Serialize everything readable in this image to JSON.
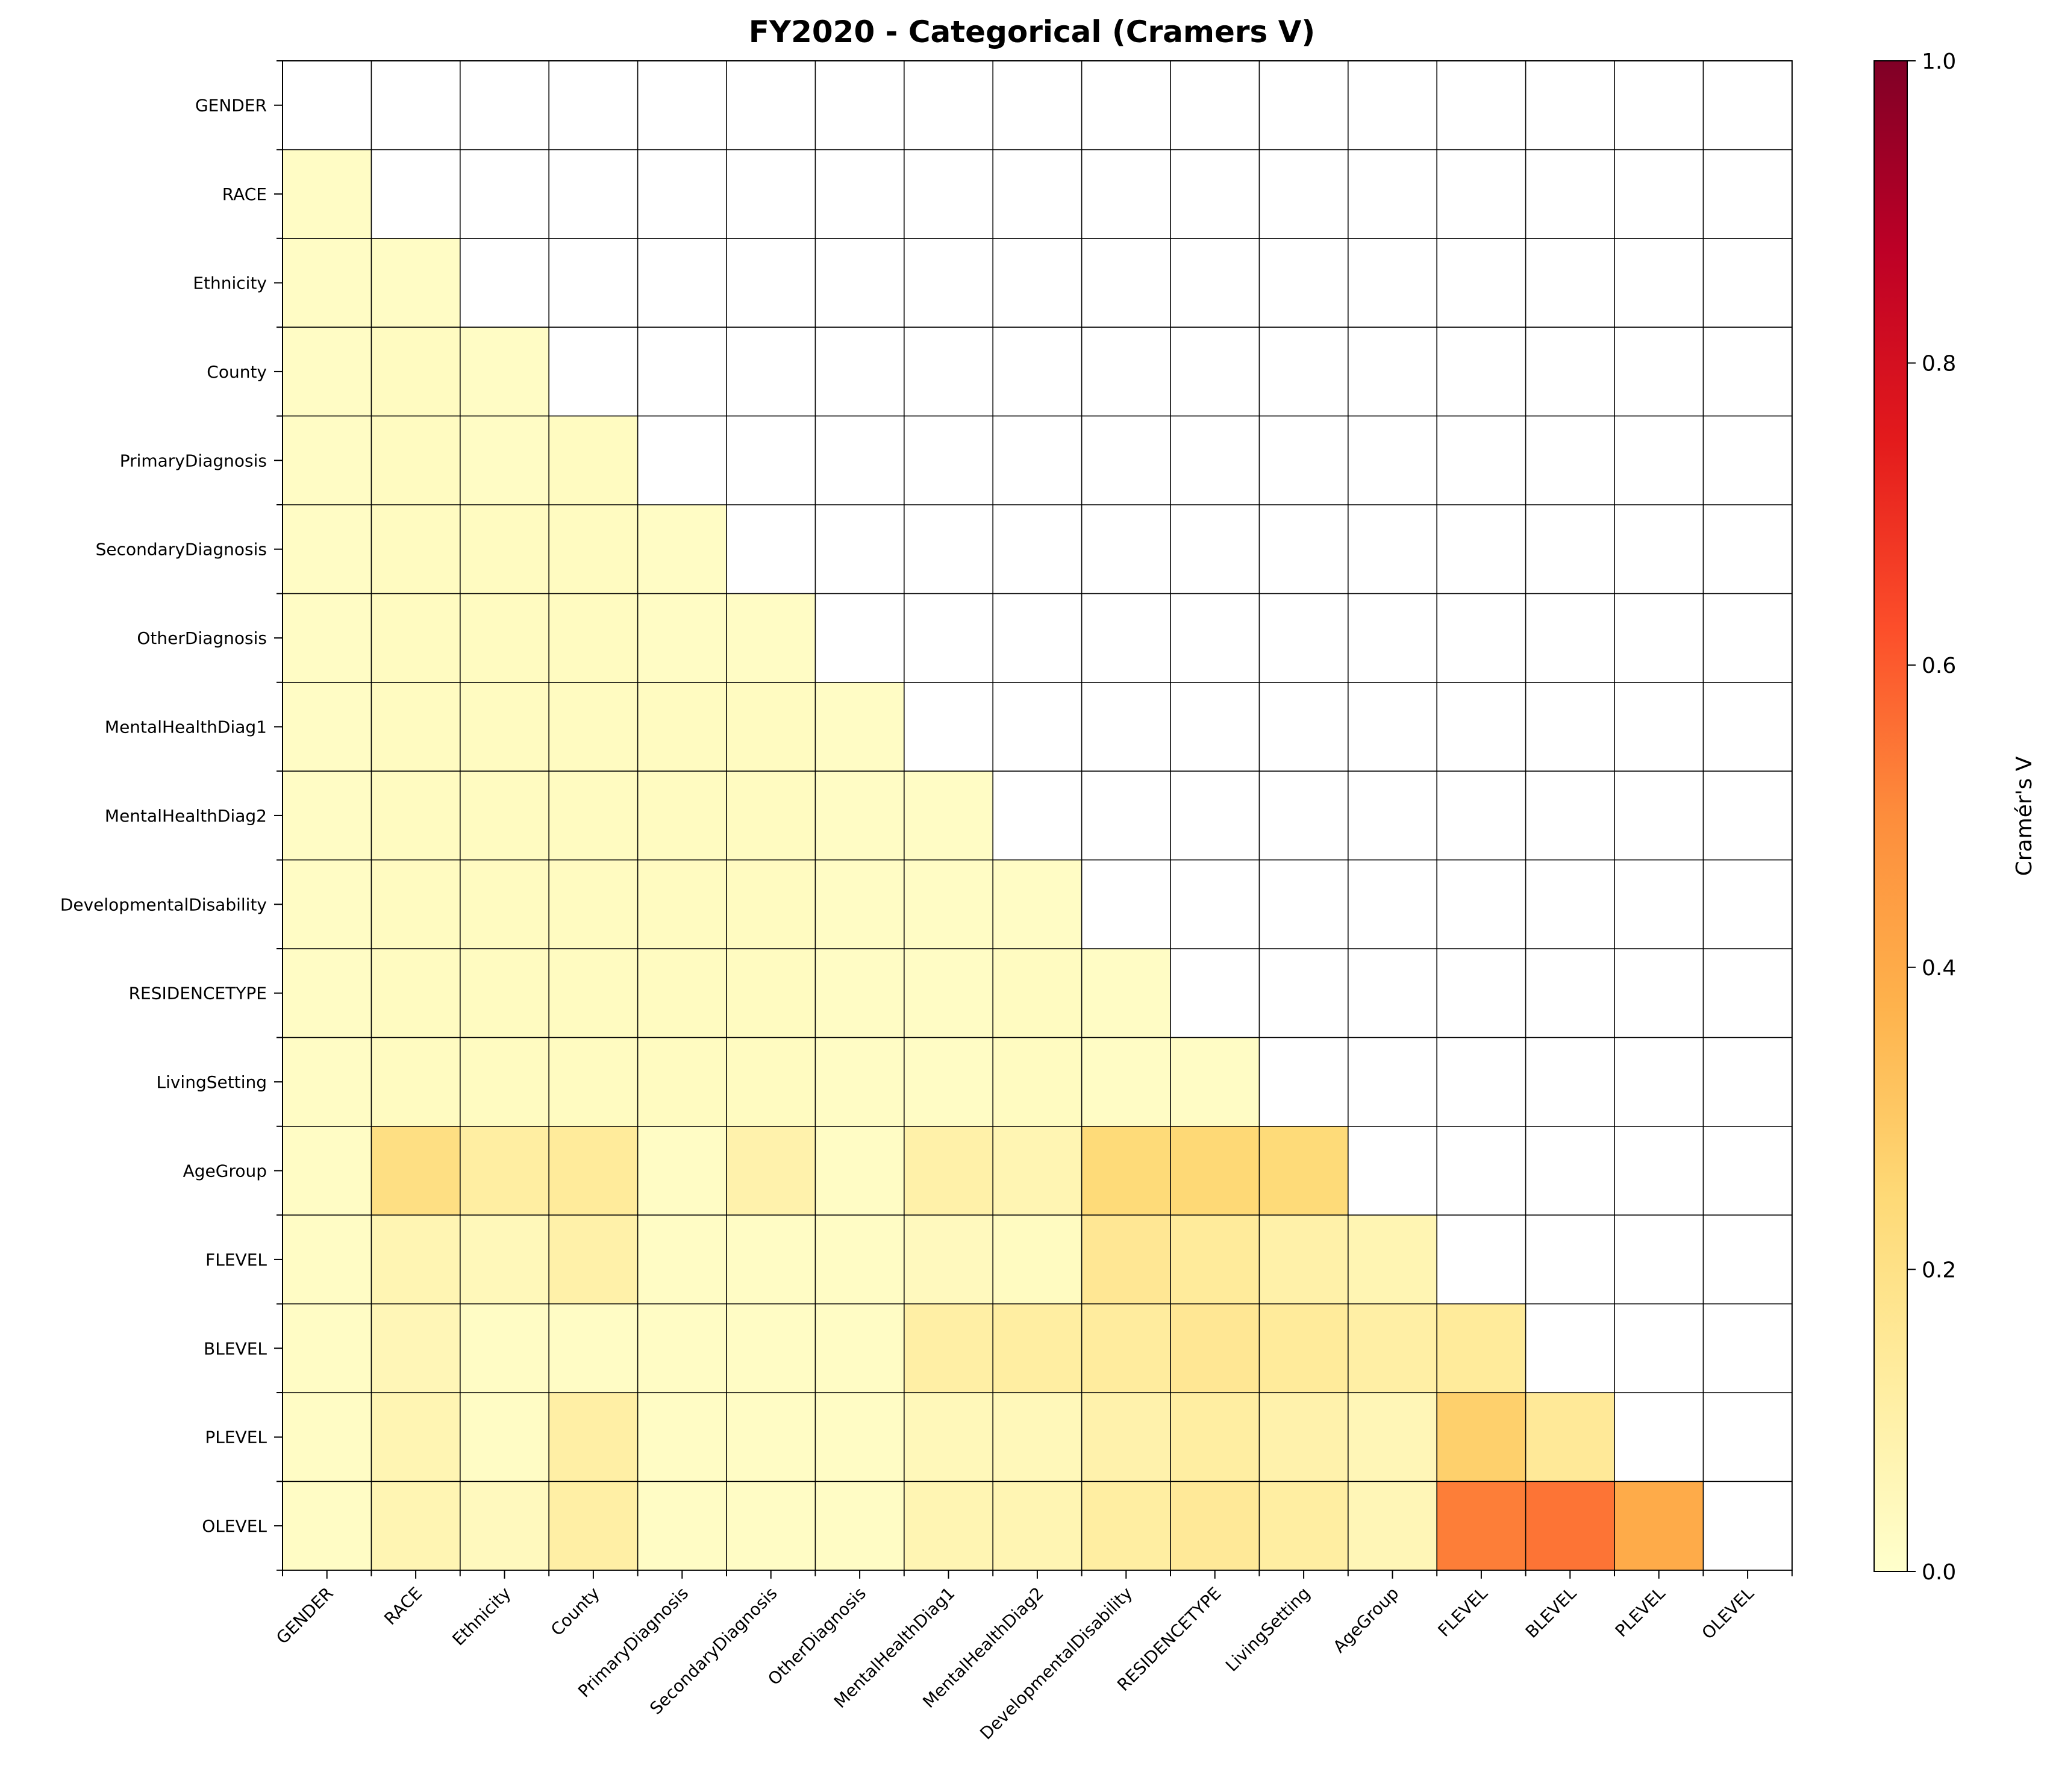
{
  "chart_data": {
    "type": "heatmap",
    "title": "FY2020  - Categorical (Cramers V)",
    "variables": [
      "GENDER",
      "RACE",
      "Ethnicity",
      "County",
      "PrimaryDiagnosis",
      "SecondaryDiagnosis",
      "OtherDiagnosis",
      "MentalHealthDiag1",
      "MentalHealthDiag2",
      "DevelopmentalDisability",
      "RESIDENCETYPE",
      "LivingSetting",
      "AgeGroup",
      "FLEVEL",
      "BLEVEL",
      "PLEVEL",
      "OLEVEL"
    ],
    "mask": "upper-triangle-and-diagonal",
    "matrix": [
      [
        null,
        null,
        null,
        null,
        null,
        null,
        null,
        null,
        null,
        null,
        null,
        null,
        null,
        null,
        null,
        null,
        null
      ],
      [
        0.02,
        null,
        null,
        null,
        null,
        null,
        null,
        null,
        null,
        null,
        null,
        null,
        null,
        null,
        null,
        null,
        null
      ],
      [
        0.02,
        0.02,
        null,
        null,
        null,
        null,
        null,
        null,
        null,
        null,
        null,
        null,
        null,
        null,
        null,
        null,
        null
      ],
      [
        0.02,
        0.03,
        0.02,
        null,
        null,
        null,
        null,
        null,
        null,
        null,
        null,
        null,
        null,
        null,
        null,
        null,
        null
      ],
      [
        0.02,
        0.03,
        0.02,
        0.03,
        null,
        null,
        null,
        null,
        null,
        null,
        null,
        null,
        null,
        null,
        null,
        null,
        null
      ],
      [
        0.02,
        0.03,
        0.03,
        0.03,
        0.02,
        null,
        null,
        null,
        null,
        null,
        null,
        null,
        null,
        null,
        null,
        null,
        null
      ],
      [
        0.02,
        0.03,
        0.03,
        0.03,
        0.02,
        0.02,
        null,
        null,
        null,
        null,
        null,
        null,
        null,
        null,
        null,
        null,
        null
      ],
      [
        0.02,
        0.03,
        0.03,
        0.03,
        0.03,
        0.03,
        0.02,
        null,
        null,
        null,
        null,
        null,
        null,
        null,
        null,
        null,
        null
      ],
      [
        0.02,
        0.03,
        0.03,
        0.03,
        0.03,
        0.03,
        0.02,
        0.02,
        null,
        null,
        null,
        null,
        null,
        null,
        null,
        null,
        null
      ],
      [
        0.02,
        0.03,
        0.03,
        0.03,
        0.03,
        0.03,
        0.02,
        0.02,
        0.02,
        null,
        null,
        null,
        null,
        null,
        null,
        null,
        null
      ],
      [
        0.02,
        0.03,
        0.03,
        0.03,
        0.03,
        0.03,
        0.02,
        0.02,
        0.03,
        0.02,
        null,
        null,
        null,
        null,
        null,
        null,
        null
      ],
      [
        0.02,
        0.03,
        0.03,
        0.03,
        0.03,
        0.03,
        0.02,
        0.02,
        0.03,
        0.02,
        0.02,
        null,
        null,
        null,
        null,
        null,
        null
      ],
      [
        0.02,
        0.21,
        0.12,
        0.14,
        0.02,
        0.09,
        0.02,
        0.1,
        0.07,
        0.24,
        0.25,
        0.24,
        null,
        null,
        null,
        null,
        null
      ],
      [
        0.02,
        0.07,
        0.05,
        0.1,
        0.02,
        0.02,
        0.02,
        0.04,
        0.03,
        0.16,
        0.14,
        0.1,
        0.07,
        null,
        null,
        null,
        null
      ],
      [
        0.02,
        0.06,
        0.02,
        0.02,
        0.02,
        0.02,
        0.02,
        0.11,
        0.12,
        0.13,
        0.16,
        0.14,
        0.11,
        0.14,
        null,
        null,
        null
      ],
      [
        0.02,
        0.07,
        0.02,
        0.11,
        0.02,
        0.02,
        0.02,
        0.05,
        0.05,
        0.09,
        0.12,
        0.09,
        0.06,
        0.28,
        0.15,
        null,
        null
      ],
      [
        0.02,
        0.07,
        0.04,
        0.11,
        0.02,
        0.02,
        0.02,
        0.07,
        0.07,
        0.12,
        0.15,
        0.12,
        0.06,
        0.53,
        0.55,
        0.4,
        null
      ]
    ],
    "colormap": "YlOrRd",
    "vmin": 0.0,
    "vmax": 1.0,
    "colorbar_label": "Cramér's V",
    "colorbar_ticks": [
      "0.0",
      "0.2",
      "0.4",
      "0.6",
      "0.8",
      "1.0"
    ],
    "grid": true
  }
}
